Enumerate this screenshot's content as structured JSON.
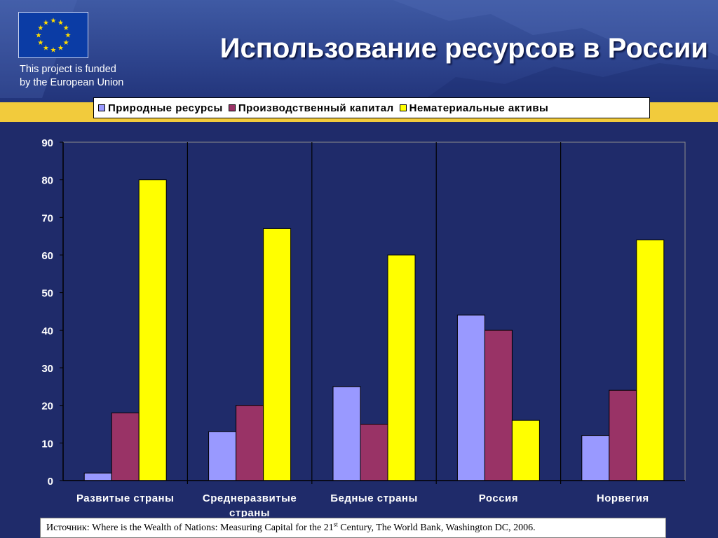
{
  "header": {
    "title": "Использование ресурсов в России",
    "funded_line1": "This project is funded",
    "funded_line2": "by the European Union"
  },
  "colors": {
    "background": "#1f2b6a",
    "band": "#f2cb3c",
    "eu_blue": "#0b3ca5",
    "eu_star": "#ffdd00"
  },
  "chart_data": {
    "type": "bar",
    "categories": [
      "Развитые страны",
      "Среднеразвитые страны",
      "Бедные страны",
      "Россия",
      "Норвегия"
    ],
    "series": [
      {
        "name": "Природные ресурсы",
        "color": "#9999ff",
        "values": [
          2,
          13,
          25,
          44,
          12
        ]
      },
      {
        "name": "Производственный капитал",
        "color": "#993366",
        "values": [
          18,
          20,
          15,
          40,
          24
        ]
      },
      {
        "name": "Нематериальные активы",
        "color": "#ffff00",
        "values": [
          80,
          67,
          60,
          16,
          64
        ]
      }
    ],
    "ylim": [
      0,
      90
    ],
    "yticks": [
      0,
      10,
      20,
      30,
      40,
      50,
      60,
      70,
      80,
      90
    ],
    "grid": false,
    "legend": "top"
  },
  "source": {
    "prefix": "Источник: Where is the Wealth of Nations: Measuring Capital for the 21",
    "sup": "st",
    "suffix": " Century, The World Bank, Washington DC, 2006."
  }
}
